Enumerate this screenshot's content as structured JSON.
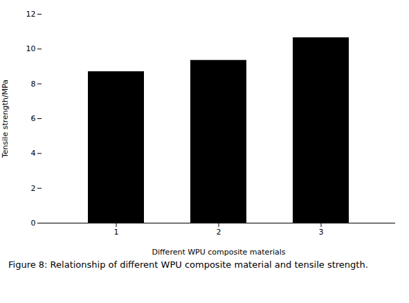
{
  "chart_data": {
    "type": "bar",
    "caption": "Figure 8: Relationship of different WPU composite material and tensile strength.",
    "categories": [
      "1",
      "2",
      "3"
    ],
    "values": [
      8.7,
      9.35,
      10.65
    ],
    "color": "#000000",
    "xlabel": "Different WPU composite materials",
    "ylabel": "Tensile strength/MPa",
    "ylim": [
      0,
      12
    ],
    "yticks": [
      0,
      2,
      4,
      6,
      8,
      10,
      12
    ]
  }
}
